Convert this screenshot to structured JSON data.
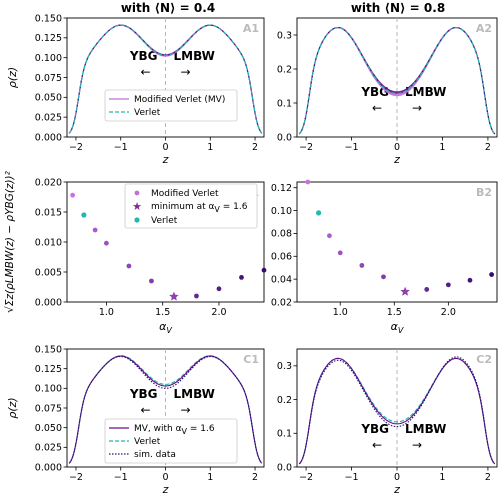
{
  "column_titles": [
    "with ⟨N⟩ = 0.4",
    "with ⟨N⟩ = 0.8"
  ],
  "annotations": {
    "left": "YBG",
    "right": "LMBW",
    "left_arrow": "←",
    "right_arrow": "→"
  },
  "colors": {
    "mv": "#c070d8",
    "mv_dark": "#6a0c8a",
    "verlet": "#20b8b0",
    "sim": "#1a1a70",
    "divider": "#b0b0b0"
  },
  "chart_data": [
    {
      "id": "A1",
      "type": "line",
      "panel_label": "A1",
      "xlabel": "z",
      "ylabel": "ρ(z)",
      "xlim": [
        -2.2,
        2.2
      ],
      "ylim": [
        0,
        0.15
      ],
      "xticks": [
        -2,
        -1,
        0,
        1,
        2
      ],
      "yticks": [
        0,
        0.025,
        0.05,
        0.075,
        0.1,
        0.125,
        0.15
      ],
      "ytick_labels": [
        "0.000",
        "0.025",
        "0.050",
        "0.075",
        "0.100",
        "0.125",
        "0.150"
      ],
      "legend": {
        "position": "lower-center",
        "entries": [
          "Modified Verlet (MV)",
          "Verlet"
        ]
      },
      "profile": {
        "peak_z": 1.0,
        "peak": 0.141,
        "center": 0.103
      }
    },
    {
      "id": "A2",
      "type": "line",
      "panel_label": "A2",
      "xlabel": "z",
      "ylabel": "",
      "xlim": [
        -2.2,
        2.2
      ],
      "ylim": [
        0,
        0.35
      ],
      "xticks": [
        -2,
        -1,
        0,
        1,
        2
      ],
      "yticks": [
        0,
        0.1,
        0.2,
        0.3
      ],
      "ytick_labels": [
        "0.0",
        "0.1",
        "0.2",
        "0.3"
      ],
      "profile": {
        "peak_z": 1.3,
        "peak": 0.322,
        "center": 0.128
      }
    },
    {
      "id": "B1",
      "type": "scatter",
      "panel_label": "B1",
      "xlabel": "αV",
      "ylabel": "√Σz(ρLMBW(z) − ρYBG(z))²",
      "xlim": [
        0.65,
        2.4
      ],
      "ylim": [
        0,
        0.02
      ],
      "xticks": [
        1.0,
        1.5,
        2.0
      ],
      "xtick_labels": [
        "1.0",
        "1.5",
        "2.0"
      ],
      "yticks": [
        0,
        0.005,
        0.01,
        0.015,
        0.02
      ],
      "ytick_labels": [
        "0.000",
        "0.005",
        "0.010",
        "0.015",
        "0.020"
      ],
      "legend": {
        "position": "upper-center",
        "entries": [
          "Modified Verlet",
          "minimum at αV = 1.6",
          "Verlet"
        ]
      },
      "x": [
        0.7,
        0.8,
        0.9,
        1.0,
        1.2,
        1.4,
        1.6,
        1.8,
        2.0,
        2.2,
        2.4
      ],
      "y": [
        0.0178,
        0.0145,
        0.012,
        0.0098,
        0.006,
        0.0035,
        0.0009,
        0.001,
        0.0022,
        0.0041,
        0.0053
      ],
      "verlet_point": [
        0.8,
        0.0145
      ],
      "minimum_point": [
        1.6,
        0.0009
      ]
    },
    {
      "id": "B2",
      "type": "scatter",
      "panel_label": "B2",
      "xlabel": "αV",
      "ylabel": "",
      "xlim": [
        0.6,
        2.45
      ],
      "ylim": [
        0.02,
        0.125
      ],
      "xticks": [
        1.0,
        1.5,
        2.0
      ],
      "xtick_labels": [
        "1.0",
        "1.5",
        "2.0"
      ],
      "yticks": [
        0.02,
        0.04,
        0.06,
        0.08,
        0.1,
        0.12
      ],
      "ytick_labels": [
        "0.02",
        "0.04",
        "0.06",
        "0.08",
        "0.10",
        "0.12"
      ],
      "x": [
        0.7,
        0.8,
        0.9,
        1.0,
        1.2,
        1.4,
        1.6,
        1.8,
        2.0,
        2.2,
        2.4
      ],
      "y": [
        0.125,
        0.098,
        0.078,
        0.063,
        0.052,
        0.042,
        0.029,
        0.031,
        0.035,
        0.039,
        0.044
      ],
      "verlet_point": [
        0.8,
        0.098
      ],
      "minimum_point": [
        1.6,
        0.029
      ]
    },
    {
      "id": "C1",
      "type": "line",
      "panel_label": "C1",
      "xlabel": "z",
      "ylabel": "ρ(z)",
      "xlim": [
        -2.2,
        2.2
      ],
      "ylim": [
        0,
        0.15
      ],
      "xticks": [
        -2,
        -1,
        0,
        1,
        2
      ],
      "yticks": [
        0,
        0.025,
        0.05,
        0.075,
        0.1,
        0.125,
        0.15
      ],
      "ytick_labels": [
        "0.000",
        "0.025",
        "0.050",
        "0.075",
        "0.100",
        "0.125",
        "0.150"
      ],
      "legend": {
        "position": "lower-center",
        "entries": [
          "MV, with αV = 1.6",
          "Verlet",
          "sim. data"
        ]
      },
      "profile": {
        "peak_z": 1.0,
        "peak": 0.141,
        "center": 0.103
      }
    },
    {
      "id": "C2",
      "type": "line",
      "panel_label": "C2",
      "xlabel": "z",
      "ylabel": "",
      "xlim": [
        -2.2,
        2.2
      ],
      "ylim": [
        0,
        0.35
      ],
      "xticks": [
        -2,
        -1,
        0,
        1,
        2
      ],
      "yticks": [
        0,
        0.1,
        0.2,
        0.3
      ],
      "ytick_labels": [
        "0.0",
        "0.1",
        "0.2",
        "0.3"
      ],
      "profile": {
        "peak_z": 1.3,
        "peak": 0.322,
        "center": 0.128
      }
    }
  ]
}
